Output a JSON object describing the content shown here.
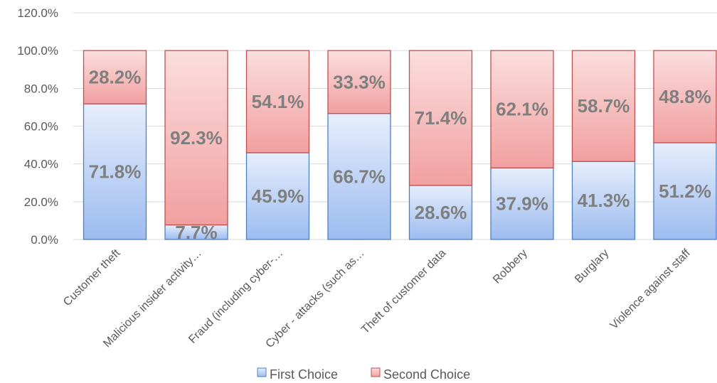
{
  "chart_data": {
    "type": "bar",
    "stacked": true,
    "categories": [
      "Customer theft",
      "Malicious insider activity…",
      "Fraud (including cyber-…",
      "Cyber - attacks (such as…",
      "Theft of customer data",
      "Robbery",
      "Burglary",
      "Violence against staff"
    ],
    "series": [
      {
        "name": "First Choice",
        "values": [
          71.8,
          7.7,
          45.9,
          66.7,
          28.6,
          37.9,
          41.3,
          51.2
        ],
        "labels": [
          "71.8%",
          "7.7%",
          "45.9%",
          "66.7%",
          "28.6%",
          "37.9%",
          "41.3%",
          "51.2%"
        ],
        "color": "#c6d9f7"
      },
      {
        "name": "Second Choice",
        "values": [
          28.2,
          92.3,
          54.1,
          33.3,
          71.4,
          62.1,
          58.7,
          48.8
        ],
        "labels": [
          "28.2%",
          "92.3%",
          "54.1%",
          "33.3%",
          "71.4%",
          "62.1%",
          "58.7%",
          "48.8%"
        ],
        "color": "#f8c6c6"
      }
    ],
    "yticks": [
      "0.0%",
      "20.0%",
      "40.0%",
      "60.0%",
      "80.0%",
      "100.0%",
      "120.0%"
    ],
    "ylim": [
      0,
      120
    ],
    "grid": true,
    "legend_position": "bottom",
    "colors": {
      "first_fill_top": "#e6eefc",
      "first_fill_bottom": "#9dbcf0",
      "first_stroke": "#4f81bd",
      "second_fill_top": "#fbdede",
      "second_fill_bottom": "#f1a0a0",
      "second_stroke": "#c0504d",
      "grid": "#d9d9d9",
      "label": "#7f7f7f"
    }
  }
}
